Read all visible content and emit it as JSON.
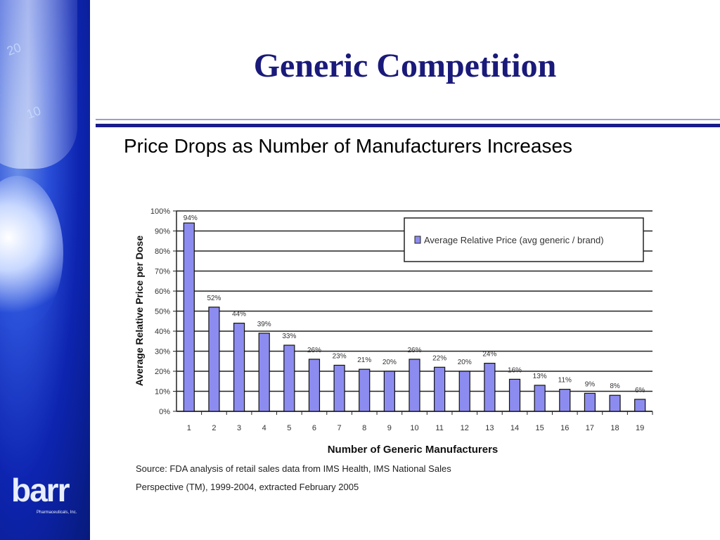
{
  "slide": {
    "title": "Generic Competition",
    "subtitle": "Price Drops as Number of Manufacturers Increases"
  },
  "logo": {
    "word": "barr",
    "sub": "Pharmaceuticals, Inc."
  },
  "colors": {
    "title": "#1a1a7a",
    "bar": "#8c8cf0",
    "sidebar": "#1230c0"
  },
  "chart_data": {
    "type": "bar",
    "categories": [
      "1",
      "2",
      "3",
      "4",
      "5",
      "6",
      "7",
      "8",
      "9",
      "10",
      "11",
      "12",
      "13",
      "14",
      "15",
      "16",
      "17",
      "18",
      "19"
    ],
    "series": [
      {
        "name": "Average Relative Price (avg generic / brand)",
        "values": [
          94,
          52,
          44,
          39,
          33,
          26,
          23,
          21,
          20,
          26,
          22,
          20,
          24,
          16,
          13,
          11,
          9,
          8,
          6
        ]
      }
    ],
    "data_labels": [
      "94%",
      "52%",
      "44%",
      "39%",
      "33%",
      "26%",
      "23%",
      "21%",
      "20%",
      "26%",
      "22%",
      "20%",
      "24%",
      "16%",
      "13%",
      "11%",
      "9%",
      "8%",
      "6%"
    ],
    "yticks": [
      "0%",
      "10%",
      "20%",
      "30%",
      "40%",
      "50%",
      "60%",
      "70%",
      "80%",
      "90%",
      "100%"
    ],
    "ylim": [
      0,
      100
    ],
    "xlabel": "Number of Generic Manufacturers",
    "ylabel": "Average Relative Price per Dose",
    "grid": true,
    "legend": "top-right",
    "source_lines": [
      "Source:  FDA analysis of retail sales data from IMS Health, IMS National Sales",
      "Perspective (TM), 1999-2004, extracted February 2005"
    ]
  }
}
